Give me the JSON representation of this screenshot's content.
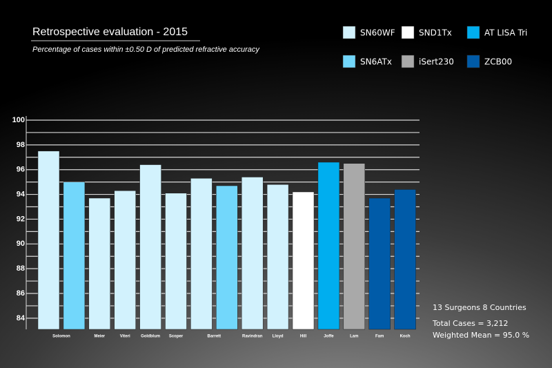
{
  "chart_data": {
    "type": "bar",
    "title": "Retrospective evaluation - 2015",
    "subtitle": "Percentage of cases within ±0.50 D of predicted refractive accuracy",
    "categories": [
      "Solomon",
      "Meier",
      "Viteri",
      "Goldblum",
      "Scoper",
      "Barrett",
      "Ravindran",
      "Lloyd",
      "Hill",
      "Joffe",
      "Lam",
      "Fam",
      "Koch"
    ],
    "series": [
      {
        "name": "SN60WF",
        "color": "#d2f2fd",
        "values": [
          97.5,
          93.7,
          94.3,
          96.4,
          94.1,
          95.3,
          95.4,
          94.8,
          null,
          null,
          null,
          null,
          null
        ]
      },
      {
        "name": "SN6ATx",
        "color": "#72d7fb",
        "values": [
          95.0,
          null,
          null,
          null,
          null,
          94.7,
          null,
          null,
          null,
          null,
          null,
          null,
          null
        ]
      },
      {
        "name": "SND1Tx",
        "color": "#ffffff",
        "values": [
          null,
          null,
          null,
          null,
          null,
          null,
          null,
          null,
          94.2,
          null,
          null,
          null,
          null
        ]
      },
      {
        "name": "iSert230",
        "color": "#a9a9a9",
        "values": [
          null,
          null,
          null,
          null,
          null,
          null,
          null,
          null,
          null,
          null,
          96.5,
          null,
          null
        ]
      },
      {
        "name": "AT LISA Tri",
        "color": "#00aeef",
        "values": [
          null,
          null,
          null,
          null,
          null,
          null,
          null,
          null,
          null,
          96.6,
          null,
          null,
          null
        ]
      },
      {
        "name": "ZCB00",
        "color": "#005ba8",
        "values": [
          null,
          null,
          null,
          null,
          null,
          null,
          null,
          null,
          null,
          null,
          null,
          93.7,
          94.4
        ]
      }
    ],
    "ylim": [
      83.1,
      100
    ],
    "yticks": [
      84,
      86,
      88,
      90,
      92,
      94,
      96,
      98,
      100
    ],
    "minor_yticks": [
      85,
      87,
      89,
      91,
      93,
      95,
      97,
      99
    ],
    "grid": true,
    "annotations": [
      "13 Surgeons  8 Countries",
      "Total Cases = 3,212",
      "Weighted Mean = 95.0 %"
    ]
  }
}
